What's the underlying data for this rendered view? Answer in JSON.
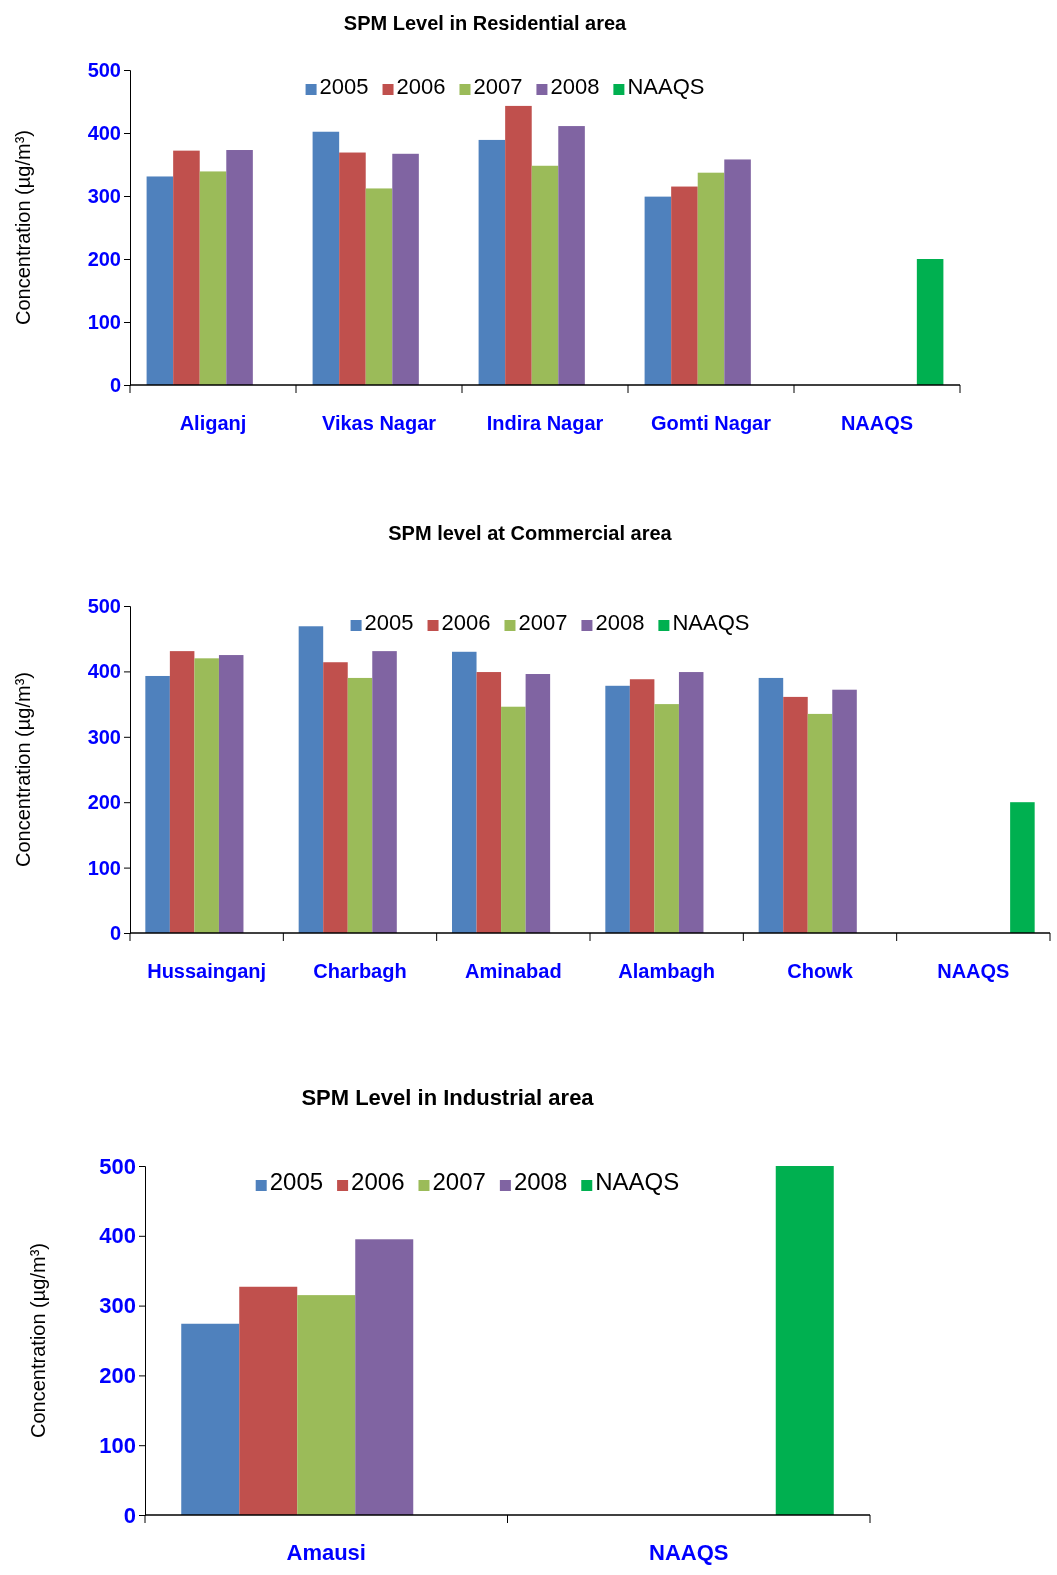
{
  "chart_data": [
    {
      "type": "bar",
      "title": "SPM Level in Residential area",
      "ylabel": "Concentration (µg/m³)",
      "categories": [
        "Aliganj",
        "Vikas Nagar",
        "Indira Nagar",
        "Gomti Nagar",
        "NAAQS"
      ],
      "ylim": [
        0,
        500
      ],
      "yticks": [
        0,
        100,
        200,
        300,
        400,
        500
      ],
      "legend": "top",
      "grid": false,
      "series": [
        {
          "name": "2005",
          "color": "#4f81bd",
          "values": [
            331,
            402,
            389,
            299,
            null
          ]
        },
        {
          "name": "2006",
          "color": "#c0504d",
          "values": [
            372,
            369,
            443,
            315,
            null
          ]
        },
        {
          "name": "2007",
          "color": "#9bbb59",
          "values": [
            339,
            312,
            348,
            337,
            null
          ]
        },
        {
          "name": "2008",
          "color": "#8064a2",
          "values": [
            373,
            367,
            411,
            358,
            null
          ]
        },
        {
          "name": "NAAQS",
          "color": "#00b050",
          "values": [
            null,
            null,
            null,
            null,
            200
          ]
        }
      ]
    },
    {
      "type": "bar",
      "title": "SPM level at Commercial area",
      "ylabel": "Concentration (µg/m³)",
      "categories": [
        "Hussainganj",
        "Charbagh",
        "Aminabad",
        "Alambagh",
        "Chowk",
        "NAAQS"
      ],
      "ylim": [
        0,
        500
      ],
      "yticks": [
        0,
        100,
        200,
        300,
        400,
        500
      ],
      "legend": "top",
      "grid": false,
      "series": [
        {
          "name": "2005",
          "color": "#4f81bd",
          "values": [
            393,
            469,
            430,
            378,
            390,
            null
          ]
        },
        {
          "name": "2006",
          "color": "#c0504d",
          "values": [
            431,
            414,
            399,
            388,
            361,
            null
          ]
        },
        {
          "name": "2007",
          "color": "#9bbb59",
          "values": [
            420,
            390,
            346,
            350,
            335,
            null
          ]
        },
        {
          "name": "2008",
          "color": "#8064a2",
          "values": [
            425,
            431,
            396,
            399,
            372,
            null
          ]
        },
        {
          "name": "NAAQS",
          "color": "#00b050",
          "values": [
            null,
            null,
            null,
            null,
            null,
            200
          ]
        }
      ]
    },
    {
      "type": "bar",
      "title": "SPM Level in Industrial area",
      "ylabel": "Concentration (µg/m³)",
      "categories": [
        "Amausi",
        "NAAQS"
      ],
      "ylim": [
        0,
        500
      ],
      "yticks": [
        0,
        100,
        200,
        300,
        400,
        500
      ],
      "legend": "top",
      "grid": false,
      "series": [
        {
          "name": "2005",
          "color": "#4f81bd",
          "values": [
            274,
            null
          ]
        },
        {
          "name": "2006",
          "color": "#c0504d",
          "values": [
            327,
            null
          ]
        },
        {
          "name": "2007",
          "color": "#9bbb59",
          "values": [
            315,
            null
          ]
        },
        {
          "name": "2008",
          "color": "#8064a2",
          "values": [
            395,
            null
          ]
        },
        {
          "name": "NAAQS",
          "color": "#00b050",
          "values": [
            null,
            500
          ]
        }
      ]
    }
  ]
}
